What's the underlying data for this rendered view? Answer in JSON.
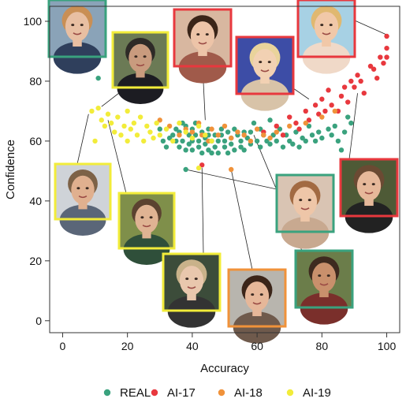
{
  "colors": {
    "REAL": "#3aa27e",
    "AI-17": "#e8383e",
    "AI-18": "#f0923a",
    "AI-19": "#f2ec3a"
  },
  "chart_data": {
    "type": "scatter",
    "title": "",
    "xlabel": "Accuracy",
    "ylabel": "Confidence",
    "xlim": [
      -4,
      104
    ],
    "ylim": [
      -4,
      105
    ],
    "xticks": [
      0,
      20,
      40,
      60,
      80,
      100
    ],
    "yticks": [
      0,
      20,
      40,
      60,
      80,
      100
    ],
    "grid": false,
    "legend": {
      "placement": "bottom",
      "entries": [
        "REAL",
        "AI-17",
        "AI-18",
        "AI-19"
      ]
    },
    "series": [
      {
        "name": "REAL",
        "points": [
          [
            7,
            85.5
          ],
          [
            11,
            81
          ],
          [
            30,
            64
          ],
          [
            31,
            60
          ],
          [
            32,
            58
          ],
          [
            33,
            61
          ],
          [
            34,
            62
          ],
          [
            35,
            60
          ],
          [
            35,
            64
          ],
          [
            36,
            63
          ],
          [
            36,
            58
          ],
          [
            37,
            66
          ],
          [
            37,
            60
          ],
          [
            38,
            57
          ],
          [
            38,
            65
          ],
          [
            38,
            50.5
          ],
          [
            39,
            62
          ],
          [
            39,
            59
          ],
          [
            40,
            64
          ],
          [
            40,
            60
          ],
          [
            40,
            57
          ],
          [
            41,
            66
          ],
          [
            41,
            62
          ],
          [
            42,
            60
          ],
          [
            42,
            58
          ],
          [
            43,
            63
          ],
          [
            43,
            56
          ],
          [
            44,
            61
          ],
          [
            44,
            59
          ],
          [
            45,
            64
          ],
          [
            45,
            62
          ],
          [
            45,
            57
          ],
          [
            46,
            60
          ],
          [
            46,
            56
          ],
          [
            47,
            62
          ],
          [
            47,
            58
          ],
          [
            48,
            60
          ],
          [
            48,
            56
          ],
          [
            49,
            64
          ],
          [
            49,
            62
          ],
          [
            50,
            60
          ],
          [
            50,
            58
          ],
          [
            51,
            63
          ],
          [
            51,
            56
          ],
          [
            52,
            61
          ],
          [
            52,
            59
          ],
          [
            53,
            64
          ],
          [
            53,
            57
          ],
          [
            54,
            62
          ],
          [
            55,
            60
          ],
          [
            55,
            58
          ],
          [
            56,
            63
          ],
          [
            56,
            57
          ],
          [
            57,
            61
          ],
          [
            58,
            59
          ],
          [
            58,
            63
          ],
          [
            59,
            66
          ],
          [
            60,
            60
          ],
          [
            61,
            64
          ],
          [
            61,
            58
          ],
          [
            62,
            62
          ],
          [
            63,
            60
          ],
          [
            64,
            67
          ],
          [
            64,
            59
          ],
          [
            65,
            62
          ],
          [
            66,
            60
          ],
          [
            67,
            64
          ],
          [
            68,
            58
          ],
          [
            69,
            62
          ],
          [
            70,
            60
          ],
          [
            71,
            59
          ],
          [
            72,
            63
          ],
          [
            73,
            58
          ],
          [
            74,
            61
          ],
          [
            75,
            60
          ],
          [
            76,
            65
          ],
          [
            77,
            62
          ],
          [
            78,
            60
          ],
          [
            79,
            63
          ],
          [
            80,
            61
          ],
          [
            82,
            64
          ],
          [
            83,
            62
          ],
          [
            84,
            65
          ],
          [
            85,
            60
          ],
          [
            86,
            57
          ],
          [
            87,
            63
          ],
          [
            88,
            68
          ],
          [
            89,
            66
          ]
        ]
      },
      {
        "name": "AI-17",
        "points": [
          [
            43,
            52
          ],
          [
            62,
            63
          ],
          [
            66,
            65
          ],
          [
            68,
            62
          ],
          [
            70,
            68
          ],
          [
            72,
            66
          ],
          [
            73,
            64
          ],
          [
            75,
            70
          ],
          [
            76,
            67
          ],
          [
            78,
            72
          ],
          [
            79,
            69
          ],
          [
            80,
            74
          ],
          [
            81,
            70
          ],
          [
            82,
            77
          ],
          [
            83,
            72
          ],
          [
            85,
            70
          ],
          [
            86,
            75
          ],
          [
            87,
            78
          ],
          [
            88,
            73
          ],
          [
            89,
            80
          ],
          [
            90,
            78
          ],
          [
            91,
            82
          ],
          [
            92,
            80
          ],
          [
            93,
            76
          ],
          [
            95,
            85
          ],
          [
            96,
            84
          ],
          [
            97,
            81
          ],
          [
            98,
            88
          ],
          [
            99,
            86
          ],
          [
            100,
            88
          ],
          [
            100,
            95
          ],
          [
            100,
            91
          ]
        ]
      },
      {
        "name": "AI-18",
        "points": [
          [
            52,
            50.5
          ],
          [
            30,
            67
          ],
          [
            33,
            65
          ],
          [
            36,
            62
          ],
          [
            38,
            64
          ],
          [
            40,
            63
          ],
          [
            42,
            66
          ],
          [
            43,
            62
          ],
          [
            45,
            60
          ],
          [
            46,
            64
          ],
          [
            48,
            62
          ],
          [
            50,
            65
          ],
          [
            52,
            61
          ],
          [
            54,
            63
          ],
          [
            56,
            62
          ],
          [
            58,
            60
          ],
          [
            60,
            64
          ],
          [
            62,
            62
          ],
          [
            64,
            61
          ],
          [
            66,
            63
          ],
          [
            70,
            65
          ],
          [
            75,
            66
          ],
          [
            80,
            68
          ],
          [
            84,
            70
          ]
        ]
      },
      {
        "name": "AI-19",
        "points": [
          [
            9,
            70
          ],
          [
            10,
            60
          ],
          [
            11,
            71
          ],
          [
            12,
            67
          ],
          [
            13,
            65
          ],
          [
            14,
            69
          ],
          [
            15,
            66
          ],
          [
            16,
            63
          ],
          [
            17,
            68
          ],
          [
            18,
            62
          ],
          [
            19,
            65
          ],
          [
            20,
            60
          ],
          [
            20,
            70
          ],
          [
            21,
            64
          ],
          [
            22,
            66
          ],
          [
            23,
            62
          ],
          [
            24,
            68
          ],
          [
            25,
            60
          ],
          [
            26,
            65
          ],
          [
            27,
            63
          ],
          [
            28,
            61
          ],
          [
            29,
            66
          ],
          [
            30,
            62
          ],
          [
            32,
            64
          ],
          [
            34,
            60
          ],
          [
            36,
            66
          ],
          [
            38,
            63
          ],
          [
            40,
            61
          ],
          [
            42,
            65
          ],
          [
            42,
            51
          ],
          [
            44,
            62
          ],
          [
            46,
            60
          ]
        ]
      }
    ],
    "callouts": [
      {
        "series": "REAL",
        "point": [
          7,
          85.5
        ]
      },
      {
        "series": "AI-19",
        "point": [
          12,
          71.5
        ]
      },
      {
        "series": "AI-19",
        "point": [
          8,
          69
        ]
      },
      {
        "series": "AI-19",
        "point": [
          14,
          67
        ]
      },
      {
        "series": "AI-17",
        "point": [
          44,
          67
        ]
      },
      {
        "series": "AI-17",
        "point": [
          76,
          74
        ]
      },
      {
        "series": "AI-17",
        "point": [
          100,
          95.5
        ]
      },
      {
        "series": "AI-17",
        "point": [
          91,
          76
        ]
      },
      {
        "series": "REAL",
        "point": [
          38,
          50.5
        ]
      },
      {
        "series": "AI-19",
        "point": [
          43,
          51
        ]
      },
      {
        "series": "AI-18",
        "point": [
          52,
          50.5
        ]
      },
      {
        "series": "REAL",
        "point": [
          59,
          62
        ]
      }
    ]
  }
}
